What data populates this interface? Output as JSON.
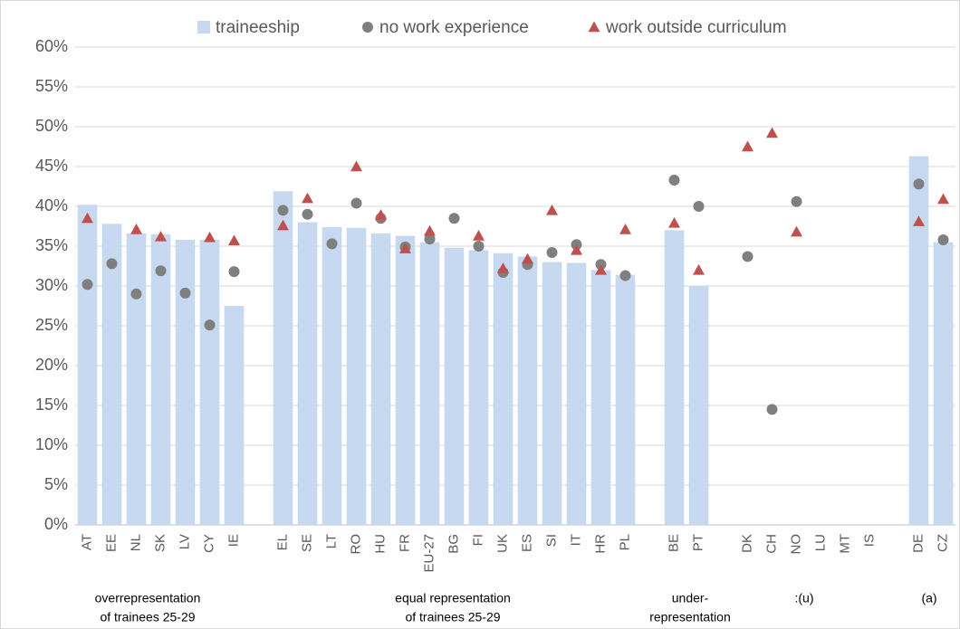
{
  "chart_data": {
    "type": "bar",
    "categories": [
      "AT",
      "EE",
      "NL",
      "SK",
      "LV",
      "CY",
      "IE",
      null,
      "EL",
      "SE",
      "LT",
      "RO",
      "HU",
      "FR",
      "EU-27",
      "BG",
      "FI",
      "UK",
      "ES",
      "SI",
      "IT",
      "HR",
      "PL",
      null,
      "BE",
      "PT",
      null,
      "DK",
      "CH",
      "NO",
      "LU",
      "MT",
      "IS",
      null,
      "DE",
      "CZ"
    ],
    "series": [
      {
        "name": "traineeship",
        "marker": "bar",
        "color": "#c6d9f1",
        "values": [
          40.2,
          37.8,
          36.6,
          36.5,
          35.8,
          35.8,
          27.5,
          null,
          41.9,
          38.0,
          37.4,
          37.3,
          36.6,
          36.3,
          35.5,
          34.8,
          34.5,
          34.1,
          33.7,
          33.0,
          32.9,
          32.0,
          31.4,
          null,
          37.0,
          30.0,
          null,
          null,
          null,
          null,
          null,
          null,
          null,
          null,
          46.3,
          35.5
        ]
      },
      {
        "name": "no work experience",
        "marker": "circle",
        "color": "#7f7f7f",
        "values": [
          30.2,
          32.8,
          29.0,
          31.9,
          29.1,
          25.1,
          31.8,
          null,
          39.5,
          39.0,
          35.3,
          40.4,
          38.5,
          34.9,
          35.9,
          38.5,
          35.0,
          31.7,
          32.7,
          34.2,
          35.2,
          32.7,
          31.3,
          null,
          43.3,
          40.0,
          null,
          33.7,
          14.5,
          40.6,
          null,
          null,
          null,
          null,
          42.8,
          35.8
        ]
      },
      {
        "name": "work outside curriculum",
        "marker": "triangle",
        "color": "#c0504d",
        "values": [
          38.5,
          null,
          37.1,
          36.2,
          null,
          36.1,
          35.7,
          null,
          37.6,
          41.0,
          null,
          45.0,
          38.9,
          34.7,
          36.9,
          null,
          36.3,
          32.2,
          33.4,
          39.5,
          34.5,
          32.0,
          37.1,
          null,
          37.9,
          32.0,
          null,
          47.5,
          49.2,
          36.8,
          null,
          null,
          null,
          null,
          38.1,
          40.9
        ]
      }
    ],
    "ylim": [
      0,
      60
    ],
    "yticks": [
      {
        "value": 0,
        "label": "0%"
      },
      {
        "value": 5,
        "label": "5%"
      },
      {
        "value": 10,
        "label": "10%"
      },
      {
        "value": 15,
        "label": "15%"
      },
      {
        "value": 20,
        "label": "20%"
      },
      {
        "value": 25,
        "label": "25%"
      },
      {
        "value": 30,
        "label": "30%"
      },
      {
        "value": 35,
        "label": "35%"
      },
      {
        "value": 40,
        "label": "40%"
      },
      {
        "value": 45,
        "label": "45%"
      },
      {
        "value": 50,
        "label": "50%"
      },
      {
        "value": 55,
        "label": "55%"
      },
      {
        "value": 60,
        "label": "60%"
      }
    ],
    "grid": true,
    "legend": "top",
    "annotations": [
      {
        "lines": [
          "overrepresentation",
          "of trainees 25-29"
        ]
      },
      {
        "lines": [
          "equal representation",
          "of trainees 25-29"
        ]
      },
      {
        "lines": [
          "under-",
          "representation"
        ]
      },
      {
        "lines": [
          ":(u)"
        ]
      },
      {
        "lines": [
          "(a)"
        ]
      }
    ]
  }
}
